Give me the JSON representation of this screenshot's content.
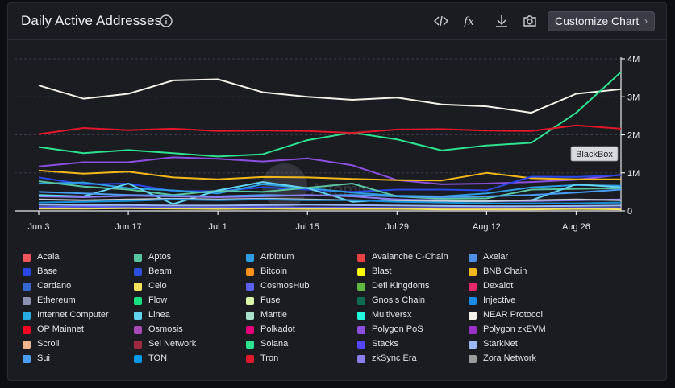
{
  "title": "Daily Active Addresses",
  "toolbar": {
    "customize_label": "Customize Chart",
    "icons": [
      "code-icon",
      "formula-icon",
      "download-icon",
      "camera-icon"
    ]
  },
  "watermark": "Artemis",
  "annotation": "BlackBox",
  "chart_data": {
    "type": "line",
    "x_ticks": [
      "Jun 3",
      "Jun 17",
      "Jul 1",
      "Jul 15",
      "Jul 29",
      "Aug 12",
      "Aug 26"
    ],
    "x": [
      "Jun 3",
      "Jun 10",
      "Jun 17",
      "Jun 24",
      "Jul 1",
      "Jul 8",
      "Jul 15",
      "Jul 22",
      "Jul 29",
      "Aug 5",
      "Aug 12",
      "Aug 19",
      "Aug 26",
      "Sep 2"
    ],
    "y_ticks": [
      "0",
      "1M",
      "2M",
      "3M",
      "4M"
    ],
    "ylim": [
      0,
      4000000
    ],
    "grid": true,
    "y_axis_side": "right",
    "series": [
      {
        "name": "NEAR Protocol",
        "color": "#f4f1e8",
        "values": [
          3300000,
          2950000,
          3080000,
          3430000,
          3460000,
          3120000,
          3000000,
          2920000,
          2980000,
          2800000,
          2750000,
          2580000,
          3080000,
          3200000
        ]
      },
      {
        "name": "Solana",
        "color": "#2de28f",
        "values": [
          1680000,
          1520000,
          1600000,
          1520000,
          1430000,
          1490000,
          1860000,
          2060000,
          1880000,
          1590000,
          1720000,
          1790000,
          2580000,
          3650000
        ]
      },
      {
        "name": "Tron",
        "color": "#e0182b",
        "values": [
          2020000,
          2180000,
          2120000,
          2160000,
          2100000,
          2110000,
          2100000,
          2050000,
          2140000,
          2150000,
          2110000,
          2100000,
          2250000,
          2160000
        ]
      },
      {
        "name": "Polygon PoS",
        "color": "#8b4fe0",
        "values": [
          1170000,
          1280000,
          1280000,
          1410000,
          1370000,
          1300000,
          1380000,
          1200000,
          810000,
          700000,
          720000,
          760000,
          820000,
          950000
        ]
      },
      {
        "name": "BNB Chain",
        "color": "#f2b81a",
        "values": [
          1060000,
          980000,
          1030000,
          880000,
          830000,
          890000,
          880000,
          840000,
          810000,
          800000,
          1000000,
          860000,
          830000,
          830000
        ]
      },
      {
        "name": "Base",
        "color": "#2a47e8",
        "values": [
          880000,
          700000,
          720000,
          520000,
          520000,
          620000,
          560000,
          500000,
          560000,
          560000,
          540000,
          900000,
          890000,
          940000
        ]
      },
      {
        "name": "Arbitrum",
        "color": "#2e9ce3",
        "values": [
          720000,
          750000,
          600000,
          540000,
          460000,
          700000,
          600000,
          480000,
          400000,
          380000,
          460000,
          620000,
          680000,
          660000
        ]
      },
      {
        "name": "Aptos",
        "color": "#59c4a0",
        "values": [
          780000,
          640000,
          560000,
          420000,
          530000,
          500000,
          610000,
          720000,
          380000,
          320000,
          330000,
          560000,
          580000,
          600000
        ]
      },
      {
        "name": "Linea",
        "color": "#62d3ee",
        "values": [
          420000,
          380000,
          720000,
          180000,
          540000,
          760000,
          600000,
          240000,
          300000,
          260000,
          250000,
          280000,
          700000,
          620000
        ]
      },
      {
        "name": "Sui",
        "color": "#4a9ef5",
        "values": [
          500000,
          460000,
          420000,
          400000,
          380000,
          420000,
          400000,
          420000,
          380000,
          360000,
          380000,
          420000,
          480000,
          560000
        ]
      },
      {
        "name": "zkSync Era",
        "color": "#8a7ef2",
        "values": [
          380000,
          360000,
          400000,
          380000,
          360000,
          380000,
          420000,
          380000,
          300000,
          280000,
          260000,
          260000,
          280000,
          300000
        ]
      },
      {
        "name": "Optimism",
        "color": "#c9ccd4",
        "values": [
          300000,
          280000,
          300000,
          320000,
          300000,
          320000,
          300000,
          280000,
          260000,
          260000,
          260000,
          280000,
          300000,
          280000
        ]
      },
      {
        "name": "TON",
        "color": "#1a8fd6",
        "values": [
          220000,
          240000,
          260000,
          300000,
          280000,
          300000,
          280000,
          280000,
          240000,
          220000,
          200000,
          200000,
          200000,
          220000
        ]
      },
      {
        "name": "Starknet",
        "color": "#9ab8f5",
        "values": [
          160000,
          150000,
          150000,
          140000,
          140000,
          150000,
          160000,
          150000,
          140000,
          130000,
          120000,
          120000,
          130000,
          140000
        ]
      },
      {
        "name": "Cosmos",
        "color": "#5c5ff0",
        "values": [
          100000,
          110000,
          100000,
          90000,
          90000,
          100000,
          90000,
          90000,
          80000,
          80000,
          80000,
          70000,
          80000,
          80000
        ]
      },
      {
        "name": "Celo",
        "color": "#f5e35c",
        "values": [
          60000,
          60000,
          70000,
          60000,
          50000,
          60000,
          50000,
          50000,
          50000,
          40000,
          40000,
          40000,
          50000,
          40000
        ]
      }
    ],
    "legend": [
      {
        "name": "Acala",
        "color": "#f0545d"
      },
      {
        "name": "Aptos",
        "color": "#59c4a0"
      },
      {
        "name": "Arbitrum",
        "color": "#2e9ce3"
      },
      {
        "name": "Avalanche C-Chain",
        "color": "#e84142"
      },
      {
        "name": "Axelar",
        "color": "#4f8fe8"
      },
      {
        "name": "Base",
        "color": "#2a47e8"
      },
      {
        "name": "Beam",
        "color": "#2c4fe0"
      },
      {
        "name": "Bitcoin",
        "color": "#f7931a"
      },
      {
        "name": "Blast",
        "color": "#fcfc03"
      },
      {
        "name": "BNB Chain",
        "color": "#f2b81a"
      },
      {
        "name": "Cardano",
        "color": "#3468d1"
      },
      {
        "name": "Celo",
        "color": "#f5e35c"
      },
      {
        "name": "CosmosHub",
        "color": "#5c5ff0"
      },
      {
        "name": "Defi Kingdoms",
        "color": "#5fb83f"
      },
      {
        "name": "Dexalot",
        "color": "#e8286a"
      },
      {
        "name": "Ethereum",
        "color": "#8c93b0"
      },
      {
        "name": "Flow",
        "color": "#16e07f"
      },
      {
        "name": "Fuse",
        "color": "#d8f5a8"
      },
      {
        "name": "Gnosis Chain",
        "color": "#0c6b4f"
      },
      {
        "name": "Injective",
        "color": "#1b8be8"
      },
      {
        "name": "Internet Computer",
        "color": "#29abe2"
      },
      {
        "name": "Linea",
        "color": "#62d3ee"
      },
      {
        "name": "Mantle",
        "color": "#a8e0cc"
      },
      {
        "name": "Multiversx",
        "color": "#23f7dd"
      },
      {
        "name": "NEAR Protocol",
        "color": "#f4f1e8"
      },
      {
        "name": "OP Mainnet",
        "color": "#ff0420"
      },
      {
        "name": "Osmosis",
        "color": "#a847b8"
      },
      {
        "name": "Polkadot",
        "color": "#e6007a"
      },
      {
        "name": "Polygon PoS",
        "color": "#8b4fe0"
      },
      {
        "name": "Polygon zkEVM",
        "color": "#9b30c8"
      },
      {
        "name": "Scroll",
        "color": "#f0b58c"
      },
      {
        "name": "Sei Network",
        "color": "#9c2a3e"
      },
      {
        "name": "Solana",
        "color": "#2de28f"
      },
      {
        "name": "Stacks",
        "color": "#5546ff"
      },
      {
        "name": "StarkNet",
        "color": "#9ab8f5"
      },
      {
        "name": "Sui",
        "color": "#4a9ef5"
      },
      {
        "name": "TON",
        "color": "#0098ea"
      },
      {
        "name": "Tron",
        "color": "#e0182b"
      },
      {
        "name": "zkSync Era",
        "color": "#8a7ef2"
      },
      {
        "name": "Zora Network",
        "color": "#9b9b9b"
      }
    ]
  }
}
